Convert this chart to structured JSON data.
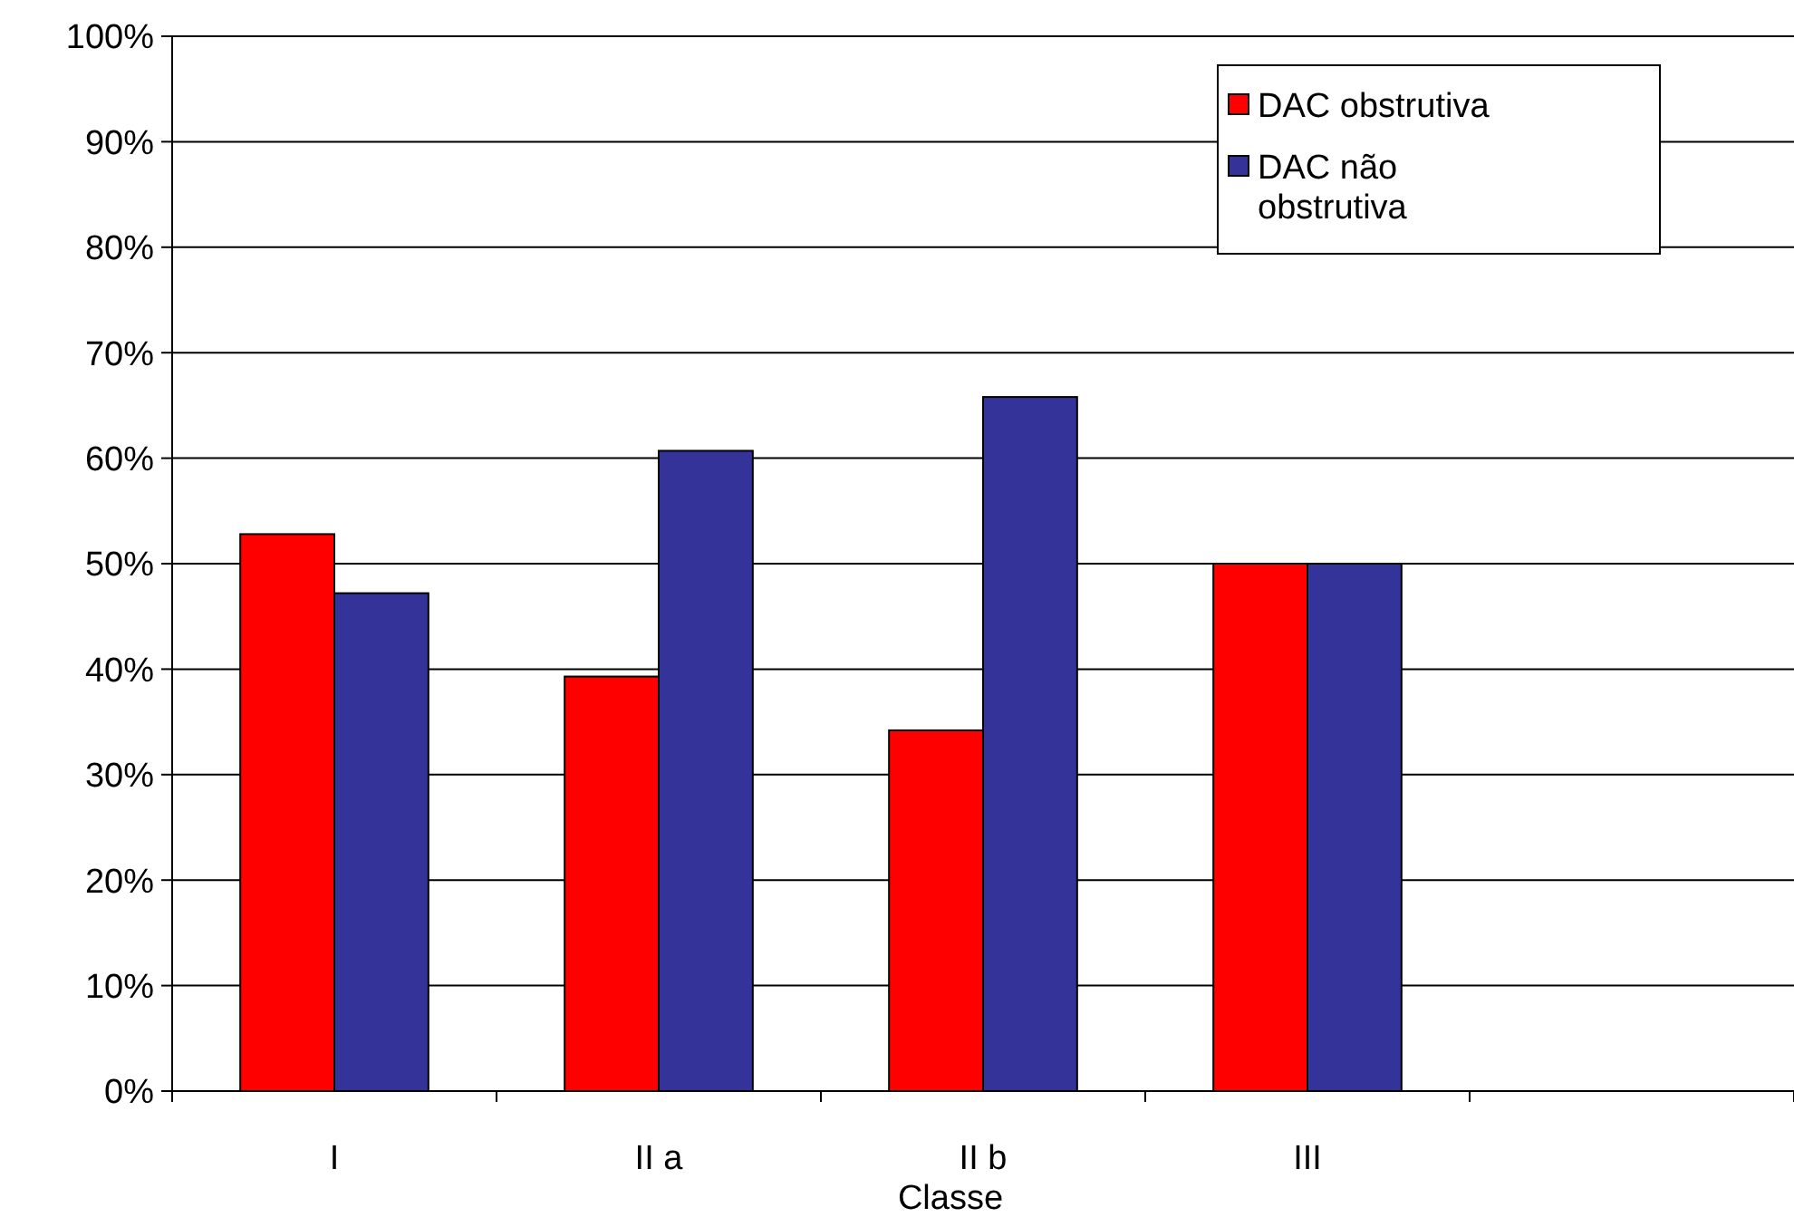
{
  "chart_data": {
    "type": "bar",
    "xlabel": "Classe",
    "categories": [
      "I",
      "II a",
      "II b",
      "III",
      null
    ],
    "series": [
      {
        "name": "DAC obstrutiva",
        "color": "#ff0000",
        "values": [
          52.8,
          39.3,
          34.2,
          50,
          null
        ]
      },
      {
        "name": "DAC não obstrutiva",
        "color": "#333399",
        "values": [
          47.2,
          60.7,
          65.8,
          50,
          null
        ]
      }
    ],
    "ylim": [
      0,
      100
    ],
    "yticks": [
      {
        "value": 0,
        "label": "0%"
      },
      {
        "value": 10,
        "label": "10%"
      },
      {
        "value": 20,
        "label": "20%"
      },
      {
        "value": 30,
        "label": "30%"
      },
      {
        "value": 40,
        "label": "40%"
      },
      {
        "value": 50,
        "label": "50%"
      },
      {
        "value": 60,
        "label": "60%"
      },
      {
        "value": 70,
        "label": "70%"
      },
      {
        "value": 80,
        "label": "80%"
      },
      {
        "value": 90,
        "label": "90%"
      },
      {
        "value": 100,
        "label": "100%"
      }
    ],
    "grid": "y",
    "legend": "top right"
  }
}
